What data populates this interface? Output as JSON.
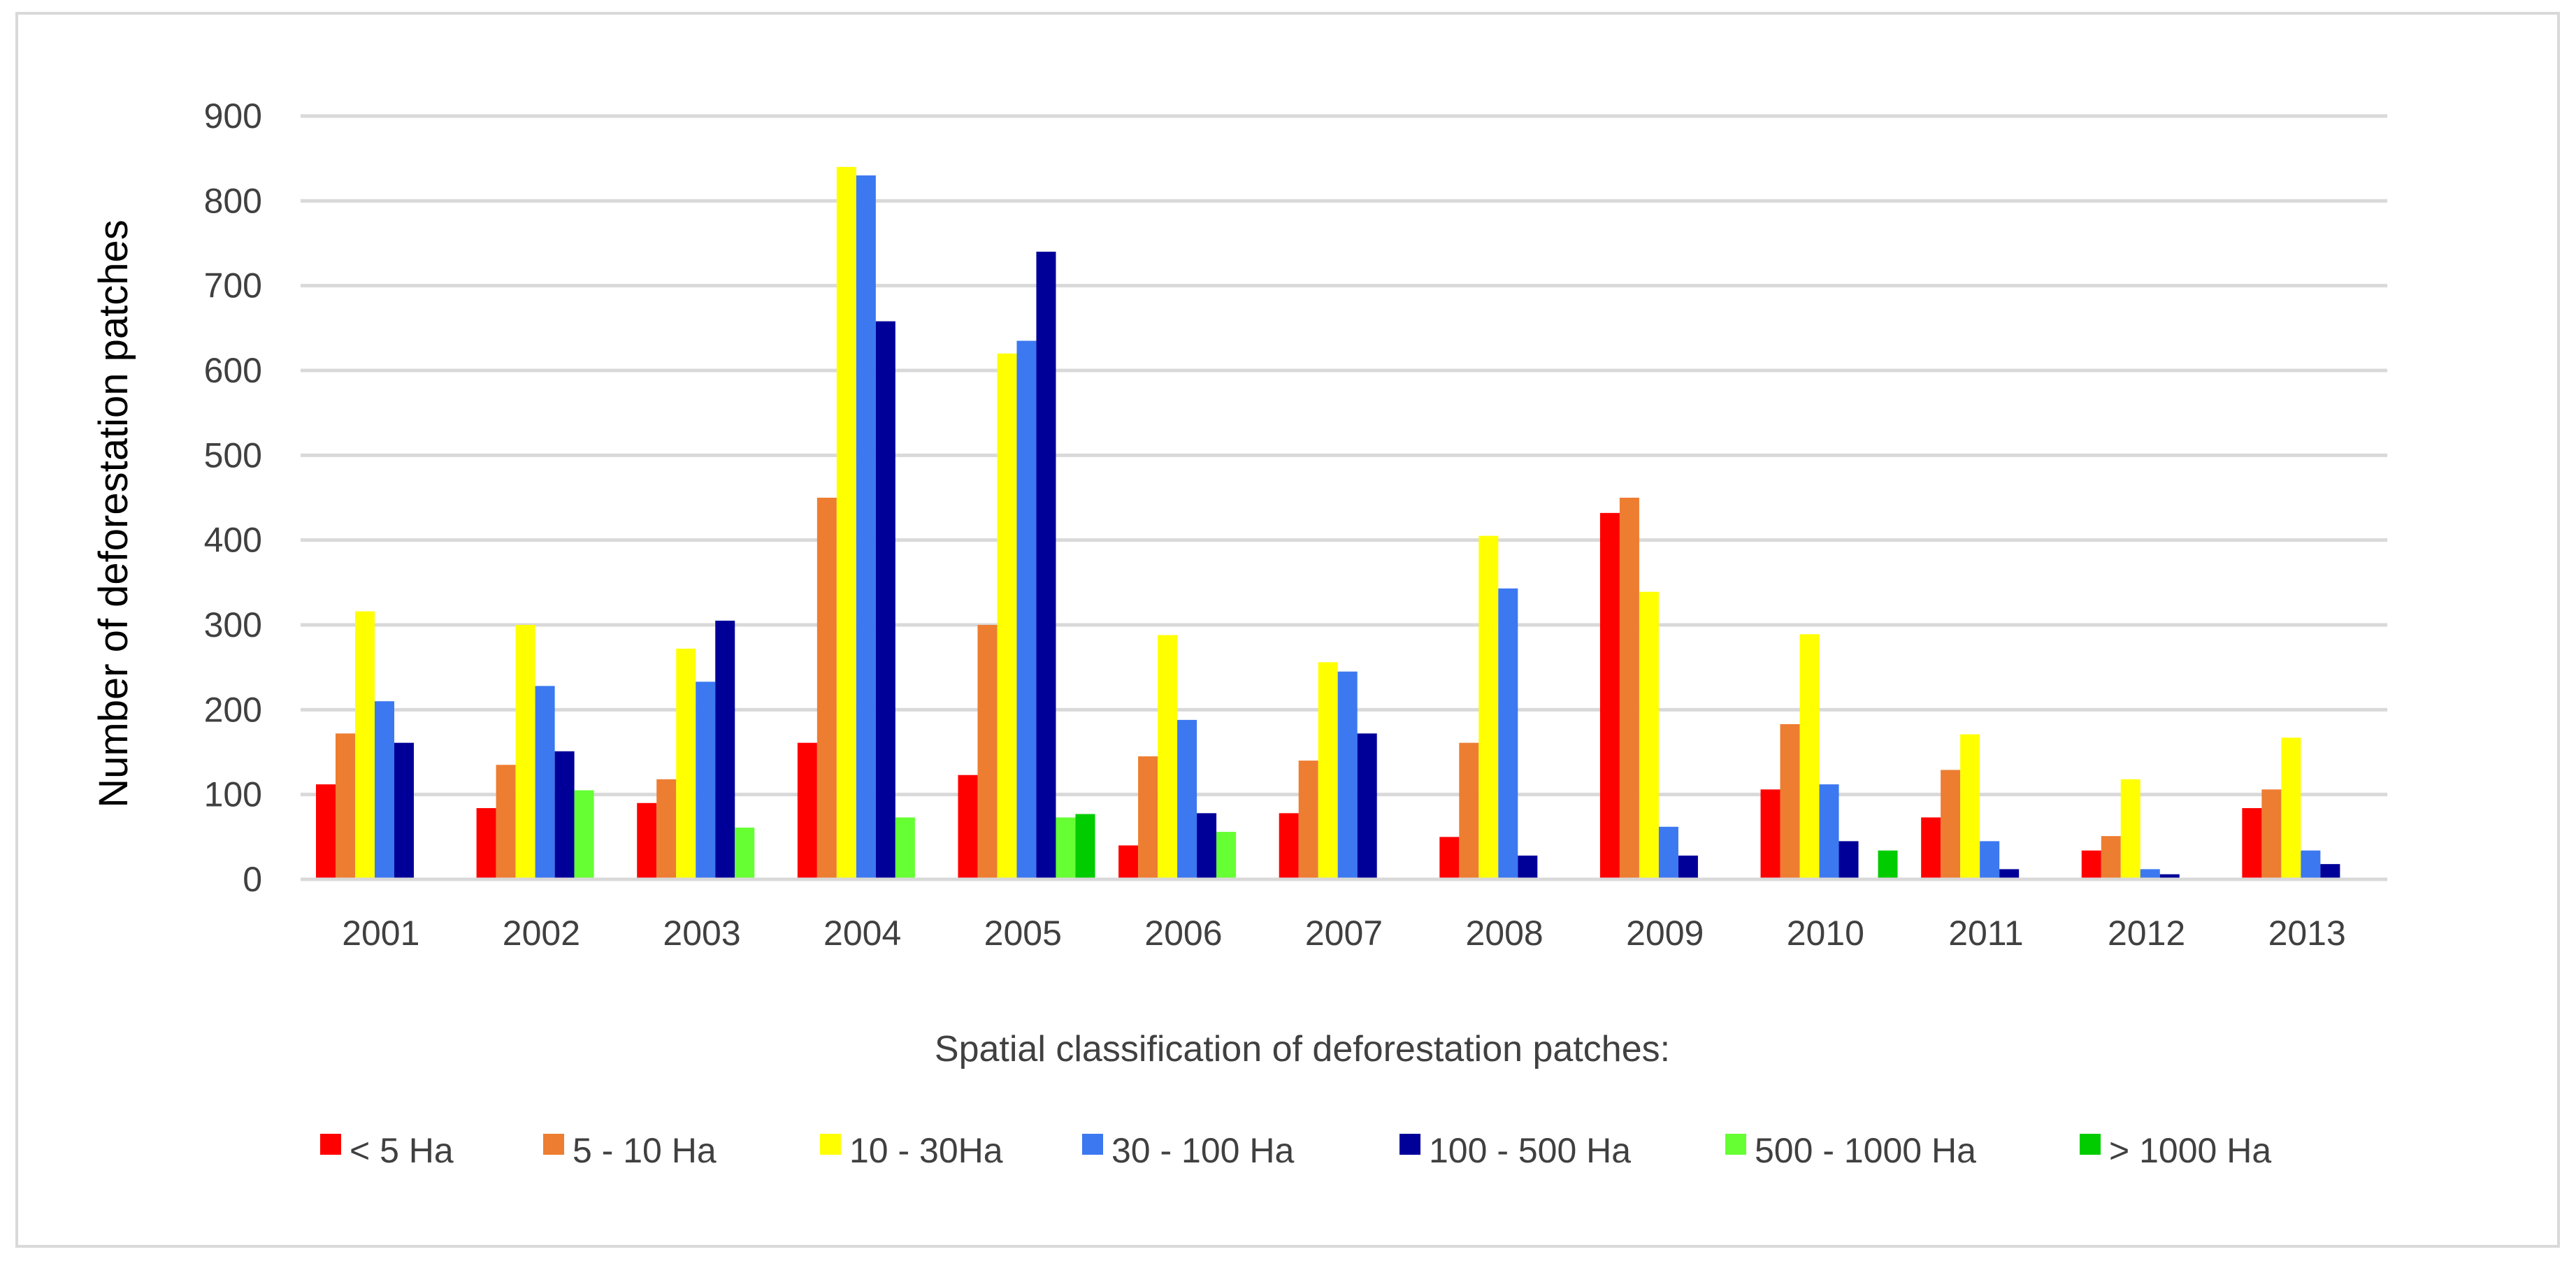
{
  "chart_data": {
    "type": "bar",
    "title": "",
    "xlabel": "Spatial classification of deforestation patches:",
    "ylabel": "Number of deforestation patches",
    "ylim": [
      0,
      900
    ],
    "yticks": [
      0,
      100,
      200,
      300,
      400,
      500,
      600,
      700,
      800,
      900
    ],
    "grid": true,
    "legend_position": "bottom",
    "categories": [
      "2001",
      "2002",
      "2003",
      "2004",
      "2005",
      "2006",
      "2007",
      "2008",
      "2009",
      "2010",
      "2011",
      "2012",
      "2013"
    ],
    "series": [
      {
        "name": "< 5 Ha",
        "color": "#ff0000",
        "values": [
          112,
          84,
          90,
          161,
          123,
          40,
          78,
          50,
          432,
          106,
          73,
          34,
          84
        ]
      },
      {
        "name": "5 - 10 Ha",
        "color": "#ed7d31",
        "values": [
          172,
          135,
          118,
          450,
          300,
          145,
          140,
          161,
          450,
          183,
          129,
          51,
          106
        ]
      },
      {
        "name": "10 - 30Ha",
        "color": "#ffff00",
        "values": [
          316,
          300,
          272,
          840,
          620,
          288,
          256,
          405,
          339,
          289,
          171,
          118,
          167
        ]
      },
      {
        "name": "30 - 100 Ha",
        "color": "#3c78f0",
        "values": [
          210,
          228,
          233,
          830,
          635,
          188,
          245,
          343,
          62,
          112,
          45,
          12,
          34
        ]
      },
      {
        "name": "100 - 500 Ha",
        "color": "#000099",
        "values": [
          161,
          151,
          305,
          658,
          740,
          78,
          172,
          28,
          28,
          45,
          12,
          6,
          18
        ]
      },
      {
        "name": "500 - 1000 Ha",
        "color": "#66ff33",
        "values": [
          0,
          105,
          61,
          73,
          73,
          56,
          0,
          0,
          0,
          0,
          0,
          0,
          0
        ]
      },
      {
        "name": "> 1000 Ha",
        "color": "#00cc00",
        "values": [
          0,
          0,
          0,
          0,
          77,
          0,
          0,
          0,
          0,
          34,
          0,
          0,
          0
        ]
      }
    ]
  }
}
